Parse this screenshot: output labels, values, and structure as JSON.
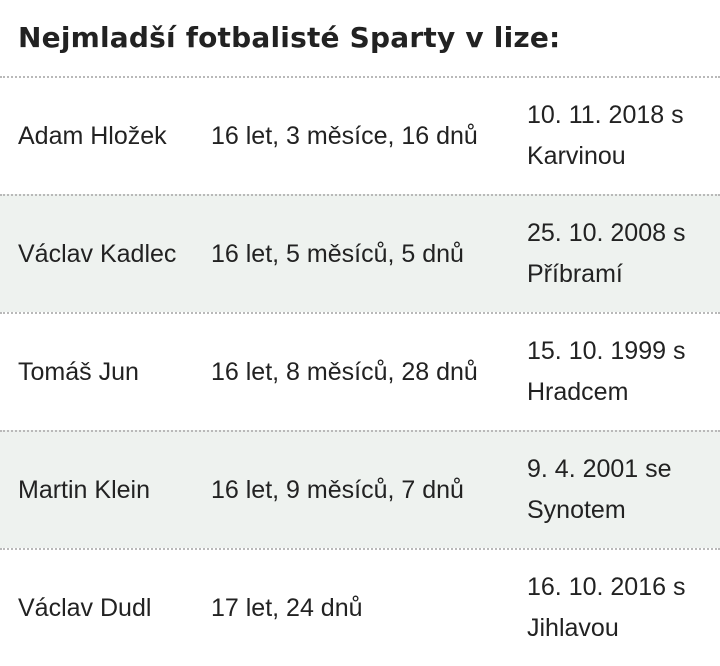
{
  "title": "Nejmladší fotbalisté Sparty v lize:",
  "players": [
    {
      "name": "Adam Hložek",
      "age": "16 let, 3 měsíce, 16 dnů",
      "debut": "10. 11. 2018 s Karvinou"
    },
    {
      "name": "Václav Kadlec",
      "age": "16 let, 5 měsíců, 5 dnů",
      "debut": "25. 10. 2008 s Příbramí"
    },
    {
      "name": "Tomáš Jun",
      "age": "16 let, 8 měsíců, 28 dnů",
      "debut": "15. 10. 1999 s Hradcem"
    },
    {
      "name": "Martin Klein",
      "age": "16 let, 9 měsíců, 7 dnů",
      "debut": "9. 4. 2001 se Synotem"
    },
    {
      "name": "Václav Dudl",
      "age": "17 let, 24 dnů",
      "debut": "16. 10. 2016 s Jihlavou"
    }
  ]
}
